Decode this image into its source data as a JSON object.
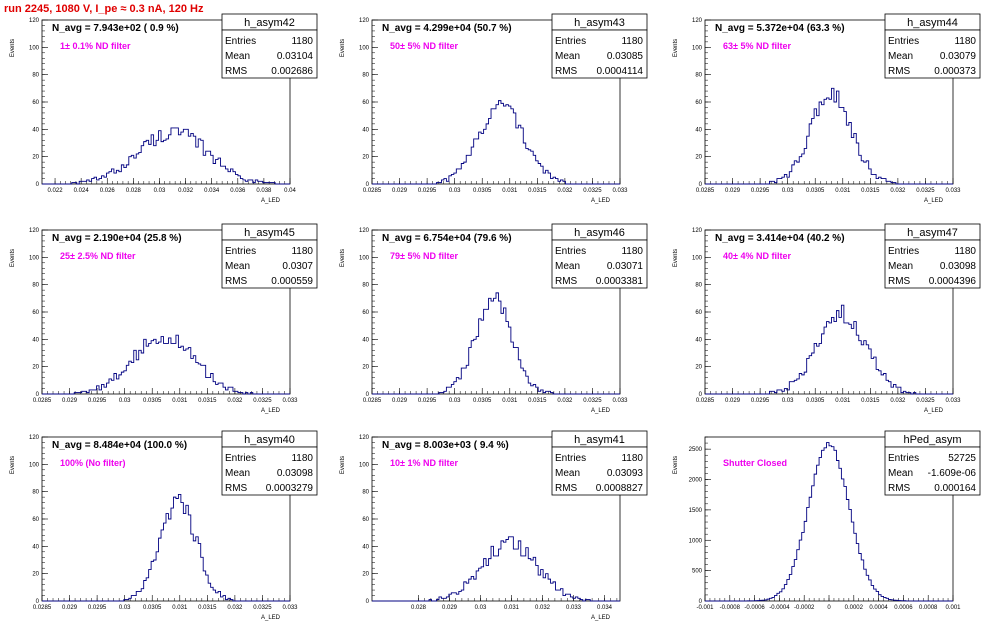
{
  "run_title": "run 2245,  1080 V, I_pe ≈ 0.3 nA, 120 Hz",
  "colors": {
    "line": "#000080",
    "filter_text": "#ee00ee",
    "run_title": "#e00000"
  },
  "chart_data": [
    {
      "type": "bar",
      "hist_name": "h_asym42",
      "navg": "N_avg = 7.943e+02 ( 0.9 %)",
      "filter": "1± 0.1% ND filter",
      "stats": [
        [
          "Entries",
          "1180"
        ],
        [
          "Mean",
          "0.03104"
        ],
        [
          "RMS",
          "0.002686"
        ]
      ],
      "ylabel": "Events",
      "xlabel": "A_LED",
      "xlim": [
        0.021,
        0.04
      ],
      "ylim": [
        0,
        120
      ],
      "xticks": [
        [
          "0.022",
          0.022
        ],
        [
          "0.024",
          0.024
        ],
        [
          "0.026",
          0.026
        ],
        [
          "0.028",
          0.028
        ],
        [
          "0.03",
          0.03
        ],
        [
          "0.032",
          0.032
        ],
        [
          "0.034",
          0.034
        ],
        [
          "0.036",
          0.036
        ],
        [
          "0.038",
          0.038
        ],
        [
          "0.04",
          0.04
        ]
      ],
      "yticks": [
        0,
        20,
        40,
        60,
        80,
        100,
        120
      ],
      "mean": 0.03104,
      "rms": 0.002686,
      "peak": 38
    },
    {
      "type": "bar",
      "hist_name": "h_asym43",
      "navg": "N_avg = 4.299e+04 (50.7 %)",
      "filter": "50± 5% ND filter",
      "stats": [
        [
          "Entries",
          "1180"
        ],
        [
          "Mean",
          "0.03085"
        ],
        [
          "RMS",
          "0.0004114"
        ]
      ],
      "ylabel": "Events",
      "xlabel": "A_LED",
      "xlim": [
        0.0285,
        0.033
      ],
      "ylim": [
        0,
        120
      ],
      "xticks": [
        [
          "0.0285",
          0.0285
        ],
        [
          "0.029",
          0.029
        ],
        [
          "0.0295",
          0.0295
        ],
        [
          "0.03",
          0.03
        ],
        [
          "0.0305",
          0.0305
        ],
        [
          "0.031",
          0.031
        ],
        [
          "0.0315",
          0.0315
        ],
        [
          "0.032",
          0.032
        ],
        [
          "0.0325",
          0.0325
        ],
        [
          "0.033",
          0.033
        ]
      ],
      "yticks": [
        0,
        20,
        40,
        60,
        80,
        100,
        120
      ],
      "mean": 0.03085,
      "rms": 0.0004114,
      "peak": 58
    },
    {
      "type": "bar",
      "hist_name": "h_asym44",
      "navg": "N_avg = 5.372e+04 (63.3 %)",
      "filter": "63± 5% ND filter",
      "stats": [
        [
          "Entries",
          "1180"
        ],
        [
          "Mean",
          "0.03079"
        ],
        [
          "RMS",
          "0.000373"
        ]
      ],
      "ylabel": "Events",
      "xlabel": "A_LED",
      "xlim": [
        0.0285,
        0.033
      ],
      "ylim": [
        0,
        120
      ],
      "xticks": [
        [
          "0.0285",
          0.0285
        ],
        [
          "0.029",
          0.029
        ],
        [
          "0.0295",
          0.0295
        ],
        [
          "0.03",
          0.03
        ],
        [
          "0.0305",
          0.0305
        ],
        [
          "0.031",
          0.031
        ],
        [
          "0.0315",
          0.0315
        ],
        [
          "0.032",
          0.032
        ],
        [
          "0.0325",
          0.0325
        ],
        [
          "0.033",
          0.033
        ]
      ],
      "yticks": [
        0,
        20,
        40,
        60,
        80,
        100,
        120
      ],
      "mean": 0.03079,
      "rms": 0.000373,
      "peak": 66
    },
    {
      "type": "bar",
      "hist_name": "h_asym45",
      "navg": "N_avg = 2.190e+04 (25.8 %)",
      "filter": "25± 2.5% ND filter",
      "stats": [
        [
          "Entries",
          "1180"
        ],
        [
          "Mean",
          "0.0307"
        ],
        [
          "RMS",
          "0.000559"
        ]
      ],
      "ylabel": "Events",
      "xlabel": "A_LED",
      "xlim": [
        0.0285,
        0.033
      ],
      "ylim": [
        0,
        120
      ],
      "xticks": [
        [
          "0.0285",
          0.0285
        ],
        [
          "0.029",
          0.029
        ],
        [
          "0.0295",
          0.0295
        ],
        [
          "0.03",
          0.03
        ],
        [
          "0.0305",
          0.0305
        ],
        [
          "0.031",
          0.031
        ],
        [
          "0.0315",
          0.0315
        ],
        [
          "0.032",
          0.032
        ],
        [
          "0.0325",
          0.0325
        ],
        [
          "0.033",
          0.033
        ]
      ],
      "yticks": [
        0,
        20,
        40,
        60,
        80,
        100,
        120
      ],
      "mean": 0.0307,
      "rms": 0.000559,
      "peak": 42
    },
    {
      "type": "bar",
      "hist_name": "h_asym46",
      "navg": "N_avg = 6.754e+04 (79.6 %)",
      "filter": "79± 5% ND filter",
      "stats": [
        [
          "Entries",
          "1180"
        ],
        [
          "Mean",
          "0.03071"
        ],
        [
          "RMS",
          "0.0003381"
        ]
      ],
      "ylabel": "Events",
      "xlabel": "A_LED",
      "xlim": [
        0.0285,
        0.033
      ],
      "ylim": [
        0,
        120
      ],
      "xticks": [
        [
          "0.0285",
          0.0285
        ],
        [
          "0.029",
          0.029
        ],
        [
          "0.0295",
          0.0295
        ],
        [
          "0.03",
          0.03
        ],
        [
          "0.0305",
          0.0305
        ],
        [
          "0.031",
          0.031
        ],
        [
          "0.0315",
          0.0315
        ],
        [
          "0.032",
          0.032
        ],
        [
          "0.0325",
          0.0325
        ],
        [
          "0.033",
          0.033
        ]
      ],
      "yticks": [
        0,
        20,
        40,
        60,
        80,
        100,
        120
      ],
      "mean": 0.03071,
      "rms": 0.0003381,
      "peak": 68
    },
    {
      "type": "bar",
      "hist_name": "h_asym47",
      "navg": "N_avg = 3.414e+04 (40.2 %)",
      "filter": "40± 4% ND filter",
      "stats": [
        [
          "Entries",
          "1180"
        ],
        [
          "Mean",
          "0.03098"
        ],
        [
          "RMS",
          "0.0004396"
        ]
      ],
      "ylabel": "Events",
      "xlabel": "A_LED",
      "xlim": [
        0.0285,
        0.033
      ],
      "ylim": [
        0,
        120
      ],
      "xticks": [
        [
          "0.0285",
          0.0285
        ],
        [
          "0.029",
          0.029
        ],
        [
          "0.0295",
          0.0295
        ],
        [
          "0.03",
          0.03
        ],
        [
          "0.0305",
          0.0305
        ],
        [
          "0.031",
          0.031
        ],
        [
          "0.0315",
          0.0315
        ],
        [
          "0.032",
          0.032
        ],
        [
          "0.0325",
          0.0325
        ],
        [
          "0.033",
          0.033
        ]
      ],
      "yticks": [
        0,
        20,
        40,
        60,
        80,
        100,
        120
      ],
      "mean": 0.03098,
      "rms": 0.0004396,
      "peak": 58
    },
    {
      "type": "bar",
      "hist_name": "h_asym40",
      "navg": "N_avg = 8.484e+04 (100.0 %)",
      "filter": "100% (No filter)",
      "stats": [
        [
          "Entries",
          "1180"
        ],
        [
          "Mean",
          "0.03098"
        ],
        [
          "RMS",
          "0.0003279"
        ]
      ],
      "ylabel": "Events",
      "xlabel": "A_LED",
      "xlim": [
        0.0285,
        0.033
      ],
      "ylim": [
        0,
        120
      ],
      "xticks": [
        [
          "0.0285",
          0.0285
        ],
        [
          "0.029",
          0.029
        ],
        [
          "0.0295",
          0.0295
        ],
        [
          "0.03",
          0.03
        ],
        [
          "0.0305",
          0.0305
        ],
        [
          "0.031",
          0.031
        ],
        [
          "0.0315",
          0.0315
        ],
        [
          "0.032",
          0.032
        ],
        [
          "0.0325",
          0.0325
        ],
        [
          "0.033",
          0.033
        ]
      ],
      "yticks": [
        0,
        20,
        40,
        60,
        80,
        100,
        120
      ],
      "mean": 0.03098,
      "rms": 0.0003279,
      "peak": 72
    },
    {
      "type": "bar",
      "hist_name": "h_asym41",
      "navg": "N_avg = 8.003e+03 ( 9.4 %)",
      "filter": "10± 1% ND filter",
      "stats": [
        [
          "Entries",
          "1180"
        ],
        [
          "Mean",
          "0.03093"
        ],
        [
          "RMS",
          "0.0008827"
        ]
      ],
      "ylabel": "Events",
      "xlabel": "A_LED",
      "xlim": [
        0.0265,
        0.0345
      ],
      "ylim": [
        0,
        120
      ],
      "xticks": [
        [
          "0.028",
          0.028
        ],
        [
          "0.029",
          0.029
        ],
        [
          "0.03",
          0.03
        ],
        [
          "0.031",
          0.031
        ],
        [
          "0.032",
          0.032
        ],
        [
          "0.033",
          0.033
        ],
        [
          "0.034",
          0.034
        ]
      ],
      "yticks": [
        0,
        20,
        40,
        60,
        80,
        100,
        120
      ],
      "mean": 0.03093,
      "rms": 0.0008827,
      "peak": 42
    },
    {
      "type": "bar",
      "hist_name": "hPed_asym",
      "navg": "",
      "filter": "Shutter Closed",
      "stats": [
        [
          "Entries",
          "52725"
        ],
        [
          "Mean",
          "-1.609e-06"
        ],
        [
          "RMS",
          "0.000164"
        ]
      ],
      "ylabel": "Events",
      "xlabel": "",
      "xlim": [
        -0.001,
        0.001
      ],
      "ylim": [
        0,
        2700
      ],
      "xticks": [
        [
          "-0.001",
          -0.001
        ],
        [
          "-0.0008",
          -0.0008
        ],
        [
          "-0.0006",
          -0.0006
        ],
        [
          "-0.0004",
          -0.0004
        ],
        [
          "-0.0002",
          -0.0002
        ],
        [
          "0",
          0
        ],
        [
          "0.0002",
          0.0002
        ],
        [
          "0.0004",
          0.0004
        ],
        [
          "0.0006",
          0.0006
        ],
        [
          "0.0008",
          0.0008
        ],
        [
          "0.001",
          0.001
        ]
      ],
      "yticks": [
        0,
        500,
        1000,
        1500,
        2000,
        2500
      ],
      "mean": -1.609e-06,
      "rms": 0.000164,
      "peak": 2580
    }
  ]
}
